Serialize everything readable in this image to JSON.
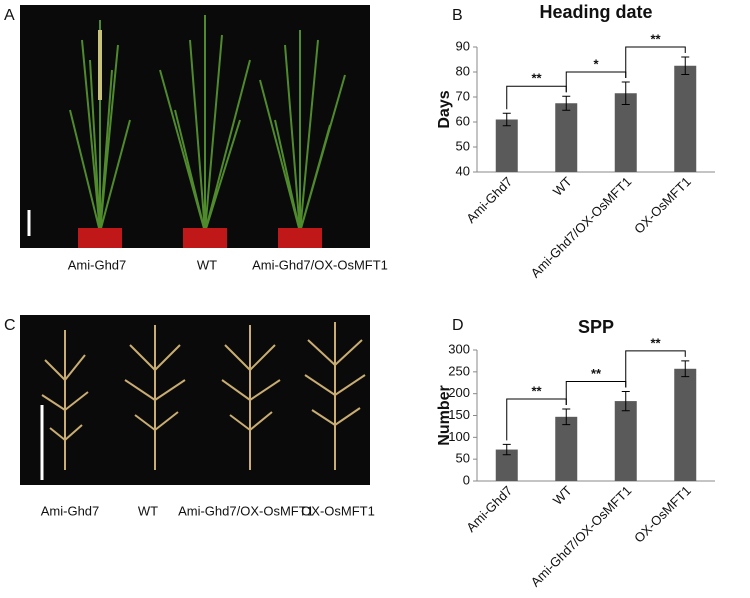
{
  "panel_labels": [
    "A",
    "B",
    "C",
    "D"
  ],
  "photo_a": {
    "labels": [
      "Ami-Ghd7",
      "WT",
      "Ami-Ghd7/OX-OsMFT1"
    ]
  },
  "photo_c": {
    "labels": [
      "Ami-Ghd7",
      "WT",
      "Ami-Ghd7/OX-OsMFT1",
      "OX-OsMFT1"
    ]
  },
  "chart_data": [
    {
      "type": "bar",
      "title": "Heading date",
      "y_label": "Days",
      "categories": [
        "Ami-Ghd7",
        "WT",
        "Ami-Ghd7/OX-OsMFT1",
        "OX-OsMFT1"
      ],
      "values": [
        61,
        67.5,
        71.5,
        82.5
      ],
      "errors": [
        2.5,
        2.8,
        4.5,
        3.5
      ],
      "significance": [
        "**",
        "*",
        "**"
      ],
      "color": "#5a5a5a",
      "ylim": [
        40,
        90
      ],
      "yticks": [
        40,
        50,
        60,
        70,
        80,
        90
      ]
    },
    {
      "type": "bar",
      "title": "SPP",
      "y_label": "Number",
      "categories": [
        "Ami-Ghd7",
        "WT",
        "Ami-Ghd7/OX-OsMFT1",
        "OX-OsMFT1"
      ],
      "values": [
        72,
        147,
        183,
        257
      ],
      "errors": [
        12,
        18,
        22,
        18
      ],
      "significance": [
        "**",
        "**",
        "**"
      ],
      "color": "#5a5a5a",
      "ylim": [
        0,
        300
      ],
      "yticks": [
        0,
        50,
        100,
        150,
        200,
        250,
        300
      ]
    }
  ]
}
